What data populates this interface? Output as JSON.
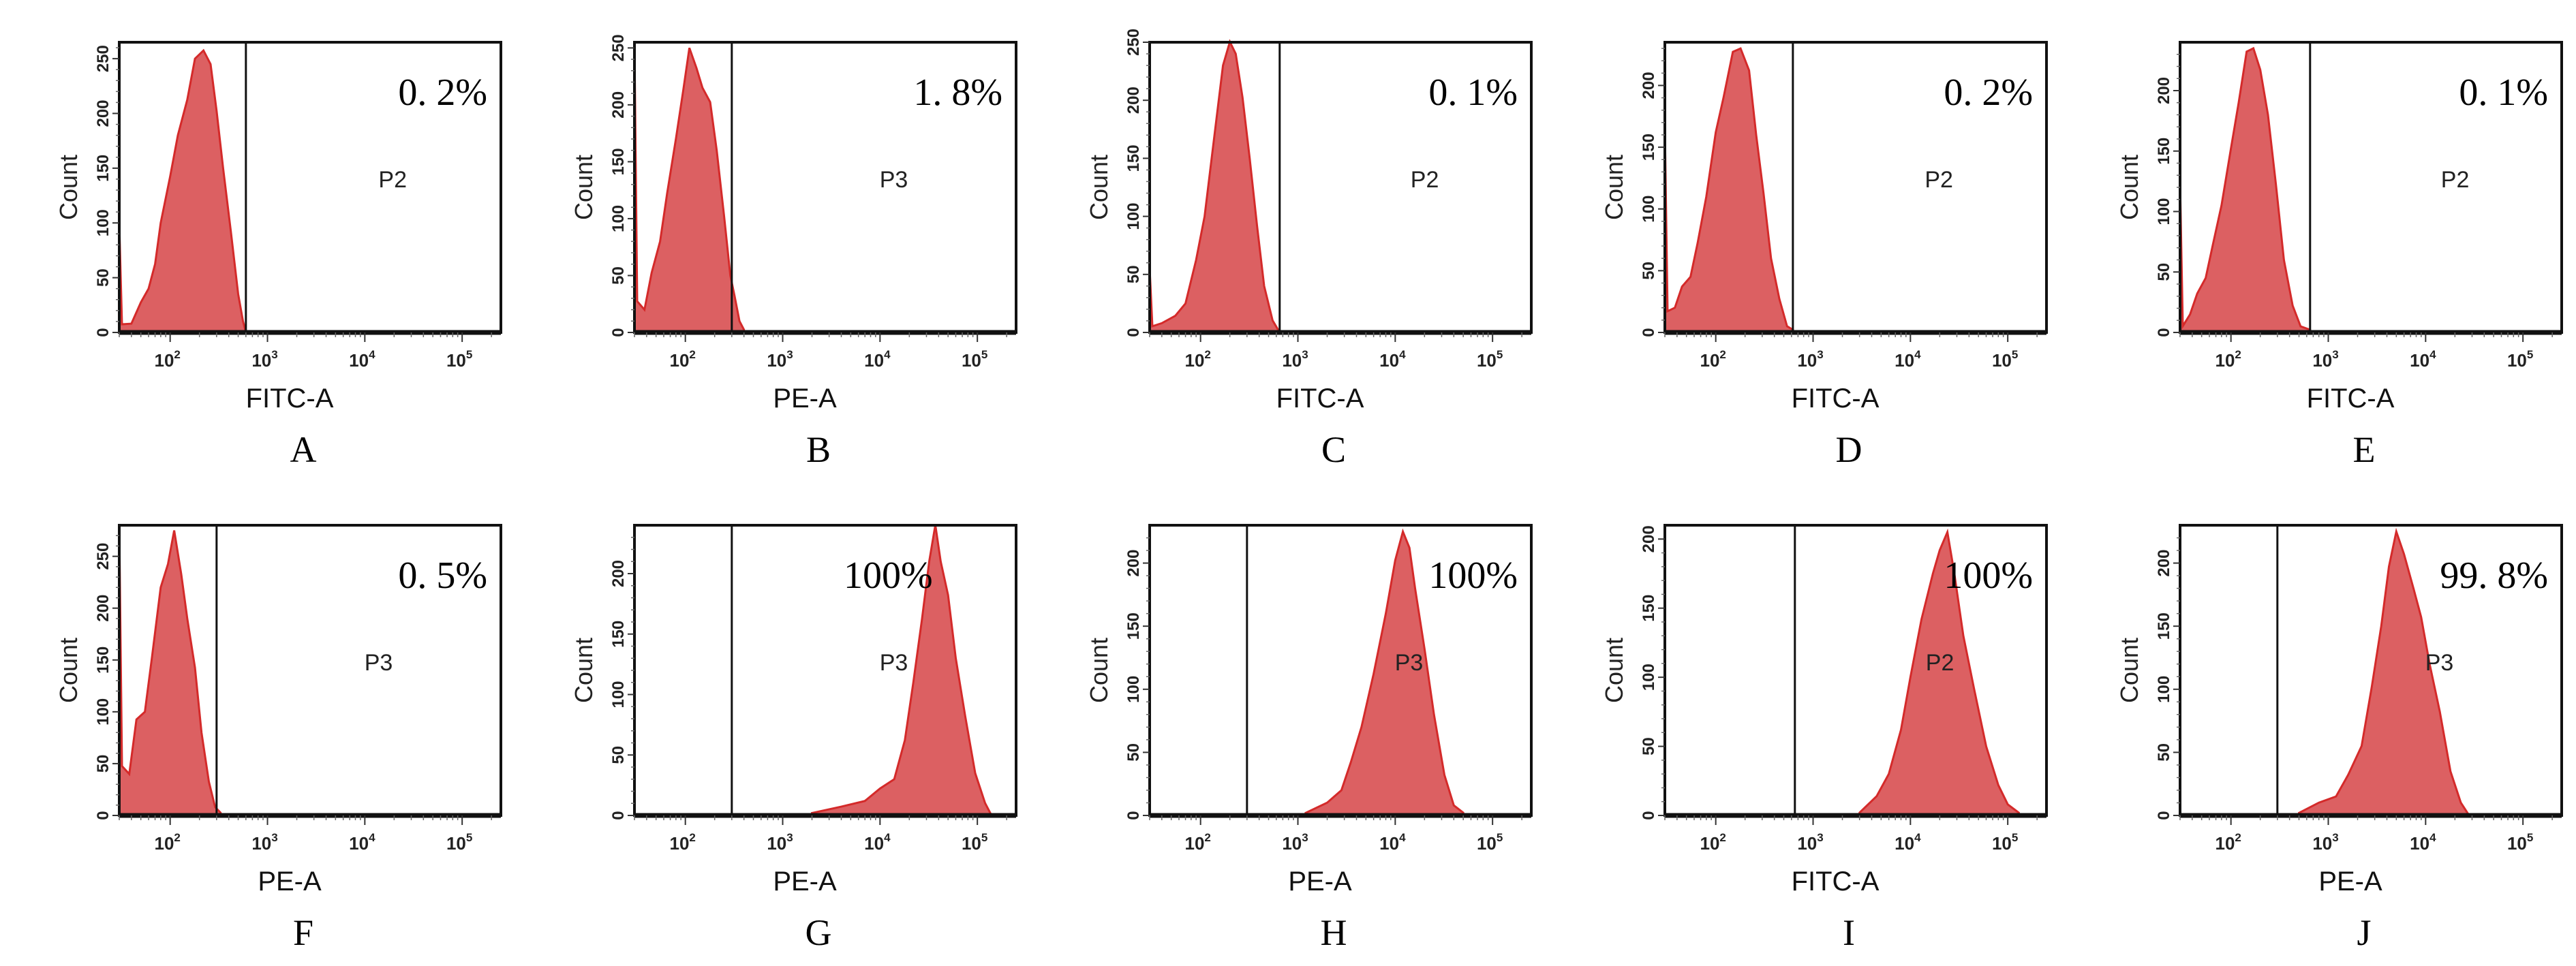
{
  "figure": {
    "fill_color": "#dc6062",
    "edge_color": "#d42a2a",
    "frame_color": "#111111"
  },
  "chart_data": [
    {
      "type": "area",
      "panel_label": "A",
      "xlabel": "FITC-A",
      "ylabel": "Count",
      "x_scale": "log",
      "xlim": [
        30,
        250000
      ],
      "ylim": [
        0,
        265
      ],
      "yticks": [
        "0",
        "50",
        "100",
        "150",
        "200",
        "250"
      ],
      "xticks": [
        {
          "base": "10",
          "exp": "2"
        },
        {
          "base": "10",
          "exp": "3"
        },
        {
          "base": "10",
          "exp": "4"
        },
        {
          "base": "10",
          "exp": "5"
        }
      ],
      "gate_name": "P2",
      "gate_start": 600,
      "percent_label": "0. 2%",
      "annotation_position": "top-right",
      "histogram": {
        "x": [
          30,
          32,
          40,
          50,
          60,
          70,
          80,
          100,
          120,
          150,
          180,
          220,
          260,
          300,
          350,
          420,
          500,
          560,
          600
        ],
        "y": [
          100,
          5,
          8,
          25,
          40,
          60,
          100,
          140,
          180,
          210,
          250,
          255,
          245,
          200,
          150,
          90,
          35,
          8,
          0
        ]
      }
    },
    {
      "type": "area",
      "panel_label": "B",
      "xlabel": "PE-A",
      "ylabel": "Count",
      "x_scale": "log",
      "xlim": [
        30,
        250000
      ],
      "ylim": [
        0,
        255
      ],
      "yticks": [
        "0",
        "50",
        "100",
        "150",
        "200",
        "250"
      ],
      "xticks": [
        {
          "base": "10",
          "exp": "2"
        },
        {
          "base": "10",
          "exp": "3"
        },
        {
          "base": "10",
          "exp": "4"
        },
        {
          "base": "10",
          "exp": "5"
        }
      ],
      "gate_name": "P3",
      "gate_start": 300,
      "percent_label": "1. 8%",
      "annotation_position": "top-right",
      "histogram": {
        "x": [
          30,
          32,
          38,
          45,
          55,
          65,
          80,
          95,
          110,
          130,
          150,
          180,
          210,
          250,
          290,
          320,
          360,
          400
        ],
        "y": [
          255,
          25,
          20,
          50,
          80,
          120,
          170,
          210,
          250,
          230,
          215,
          200,
          160,
          100,
          50,
          30,
          10,
          0
        ]
      }
    },
    {
      "type": "area",
      "panel_label": "C",
      "xlabel": "FITC-A",
      "ylabel": "Count",
      "x_scale": "log",
      "xlim": [
        30,
        250000
      ],
      "ylim": [
        0,
        250
      ],
      "yticks": [
        "0",
        "50",
        "100",
        "150",
        "200",
        "250"
      ],
      "xticks": [
        {
          "base": "10",
          "exp": "2"
        },
        {
          "base": "10",
          "exp": "3"
        },
        {
          "base": "10",
          "exp": "4"
        },
        {
          "base": "10",
          "exp": "5"
        }
      ],
      "gate_name": "P2",
      "gate_start": 650,
      "percent_label": "0. 1%",
      "annotation_position": "top-right",
      "histogram": {
        "x": [
          30,
          32,
          40,
          55,
          70,
          90,
          110,
          140,
          170,
          200,
          230,
          270,
          320,
          380,
          450,
          550,
          650
        ],
        "y": [
          55,
          3,
          8,
          12,
          25,
          60,
          100,
          170,
          230,
          248,
          240,
          200,
          150,
          90,
          40,
          8,
          0
        ]
      }
    },
    {
      "type": "area",
      "panel_label": "D",
      "xlabel": "FITC-A",
      "ylabel": "Count",
      "x_scale": "log",
      "xlim": [
        30,
        250000
      ],
      "ylim": [
        0,
        235
      ],
      "yticks": [
        "0",
        "50",
        "100",
        "150",
        "200"
      ],
      "xticks": [
        {
          "base": "10",
          "exp": "2"
        },
        {
          "base": "10",
          "exp": "3"
        },
        {
          "base": "10",
          "exp": "4"
        },
        {
          "base": "10",
          "exp": "5"
        }
      ],
      "gate_name": "P2",
      "gate_start": 620,
      "percent_label": "0. 2%",
      "annotation_position": "top-right",
      "histogram": {
        "x": [
          30,
          32,
          38,
          45,
          55,
          65,
          80,
          100,
          120,
          150,
          180,
          220,
          260,
          310,
          370,
          450,
          540,
          620
        ],
        "y": [
          165,
          15,
          20,
          35,
          45,
          70,
          110,
          160,
          190,
          225,
          230,
          210,
          160,
          110,
          60,
          25,
          5,
          0
        ]
      }
    },
    {
      "type": "area",
      "panel_label": "E",
      "xlabel": "FITC-A",
      "ylabel": "Count",
      "x_scale": "log",
      "xlim": [
        30,
        250000
      ],
      "ylim": [
        0,
        240
      ],
      "yticks": [
        "0",
        "50",
        "100",
        "150",
        "200"
      ],
      "xticks": [
        {
          "base": "10",
          "exp": "2"
        },
        {
          "base": "10",
          "exp": "3"
        },
        {
          "base": "10",
          "exp": "4"
        },
        {
          "base": "10",
          "exp": "5"
        }
      ],
      "gate_name": "P2",
      "gate_start": 650,
      "percent_label": "0. 1%",
      "annotation_position": "top-right",
      "histogram": {
        "x": [
          30,
          32,
          38,
          45,
          55,
          65,
          80,
          100,
          120,
          145,
          170,
          200,
          240,
          290,
          350,
          430,
          520,
          650
        ],
        "y": [
          125,
          3,
          15,
          30,
          45,
          70,
          105,
          150,
          190,
          230,
          235,
          215,
          180,
          120,
          60,
          20,
          5,
          0
        ]
      }
    },
    {
      "type": "area",
      "panel_label": "F",
      "xlabel": "PE-A",
      "ylabel": "Count",
      "x_scale": "log",
      "xlim": [
        30,
        250000
      ],
      "ylim": [
        0,
        280
      ],
      "yticks": [
        "0",
        "50",
        "100",
        "150",
        "200",
        "250"
      ],
      "xticks": [
        {
          "base": "10",
          "exp": "2"
        },
        {
          "base": "10",
          "exp": "3"
        },
        {
          "base": "10",
          "exp": "4"
        },
        {
          "base": "10",
          "exp": "5"
        }
      ],
      "gate_name": "P3",
      "gate_start": 300,
      "percent_label": "0. 5%",
      "annotation_position": "top-right",
      "histogram": {
        "x": [
          30,
          32,
          38,
          45,
          55,
          65,
          80,
          95,
          110,
          130,
          150,
          180,
          210,
          250,
          290,
          330
        ],
        "y": [
          280,
          45,
          40,
          90,
          100,
          150,
          220,
          240,
          275,
          230,
          190,
          140,
          80,
          30,
          8,
          0
        ]
      }
    },
    {
      "type": "area",
      "panel_label": "G",
      "xlabel": "PE-A",
      "ylabel": "Count",
      "x_scale": "log",
      "xlim": [
        30,
        250000
      ],
      "ylim": [
        0,
        240
      ],
      "yticks": [
        "0",
        "50",
        "100",
        "150",
        "200"
      ],
      "xticks": [
        {
          "base": "10",
          "exp": "2"
        },
        {
          "base": "10",
          "exp": "3"
        },
        {
          "base": "10",
          "exp": "4"
        },
        {
          "base": "10",
          "exp": "5"
        }
      ],
      "gate_name": "P3",
      "gate_start": 300,
      "percent_label": "100%",
      "annotation_position": "top-center",
      "histogram": {
        "x": [
          2000,
          4000,
          7000,
          10000,
          14000,
          18000,
          22000,
          27000,
          32000,
          37000,
          42000,
          50000,
          60000,
          75000,
          95000,
          120000,
          140000
        ],
        "y": [
          2,
          5,
          12,
          20,
          30,
          60,
          110,
          160,
          210,
          238,
          210,
          180,
          130,
          80,
          35,
          8,
          0
        ]
      }
    },
    {
      "type": "area",
      "panel_label": "H",
      "xlabel": "PE-A",
      "ylabel": "Count",
      "x_scale": "log",
      "xlim": [
        30,
        250000
      ],
      "ylim": [
        0,
        230
      ],
      "yticks": [
        "0",
        "50",
        "100",
        "150",
        "200"
      ],
      "xticks": [
        {
          "base": "10",
          "exp": "2"
        },
        {
          "base": "10",
          "exp": "3"
        },
        {
          "base": "10",
          "exp": "4"
        },
        {
          "base": "10",
          "exp": "5"
        }
      ],
      "gate_name": "P3",
      "gate_start": 300,
      "percent_label": "100%",
      "annotation_position": "top-right",
      "histogram": {
        "x": [
          1200,
          2000,
          2800,
          3500,
          4500,
          6000,
          8000,
          10000,
          12000,
          14000,
          16000,
          20000,
          25000,
          32000,
          40000,
          50000
        ],
        "y": [
          2,
          8,
          20,
          40,
          70,
          110,
          160,
          200,
          225,
          210,
          180,
          130,
          80,
          30,
          8,
          0
        ]
      }
    },
    {
      "type": "area",
      "panel_label": "I",
      "xlabel": "FITC-A",
      "ylabel": "Count",
      "x_scale": "log",
      "xlim": [
        30,
        250000
      ],
      "ylim": [
        0,
        210
      ],
      "yticks": [
        "0",
        "50",
        "100",
        "150",
        "200"
      ],
      "xticks": [
        {
          "base": "10",
          "exp": "2"
        },
        {
          "base": "10",
          "exp": "3"
        },
        {
          "base": "10",
          "exp": "4"
        },
        {
          "base": "10",
          "exp": "5"
        }
      ],
      "gate_name": "P2",
      "gate_start": 650,
      "percent_label": "100%",
      "annotation_position": "top-right",
      "histogram": {
        "x": [
          3000,
          4500,
          6000,
          8000,
          10000,
          13000,
          17000,
          20000,
          24000,
          28000,
          35000,
          45000,
          60000,
          80000,
          100000,
          130000
        ],
        "y": [
          2,
          12,
          30,
          60,
          100,
          140,
          175,
          190,
          205,
          175,
          130,
          90,
          50,
          20,
          8,
          0
        ]
      }
    },
    {
      "type": "area",
      "panel_label": "J",
      "xlabel": "PE-A",
      "ylabel": "Count",
      "x_scale": "log",
      "xlim": [
        30,
        250000
      ],
      "ylim": [
        0,
        230
      ],
      "yticks": [
        "0",
        "50",
        "100",
        "150",
        "200"
      ],
      "xticks": [
        {
          "base": "10",
          "exp": "2"
        },
        {
          "base": "10",
          "exp": "3"
        },
        {
          "base": "10",
          "exp": "4"
        },
        {
          "base": "10",
          "exp": "5"
        }
      ],
      "gate_name": "P3",
      "gate_start": 300,
      "percent_label": "99. 8%",
      "annotation_position": "top-right",
      "histogram": {
        "x": [
          500,
          800,
          1200,
          1600,
          2200,
          2800,
          3500,
          4200,
          5000,
          6000,
          7500,
          9000,
          11000,
          14000,
          18000,
          23000,
          28000
        ],
        "y": [
          2,
          8,
          15,
          30,
          55,
          100,
          150,
          195,
          225,
          205,
          180,
          155,
          120,
          80,
          35,
          8,
          0
        ]
      }
    }
  ]
}
